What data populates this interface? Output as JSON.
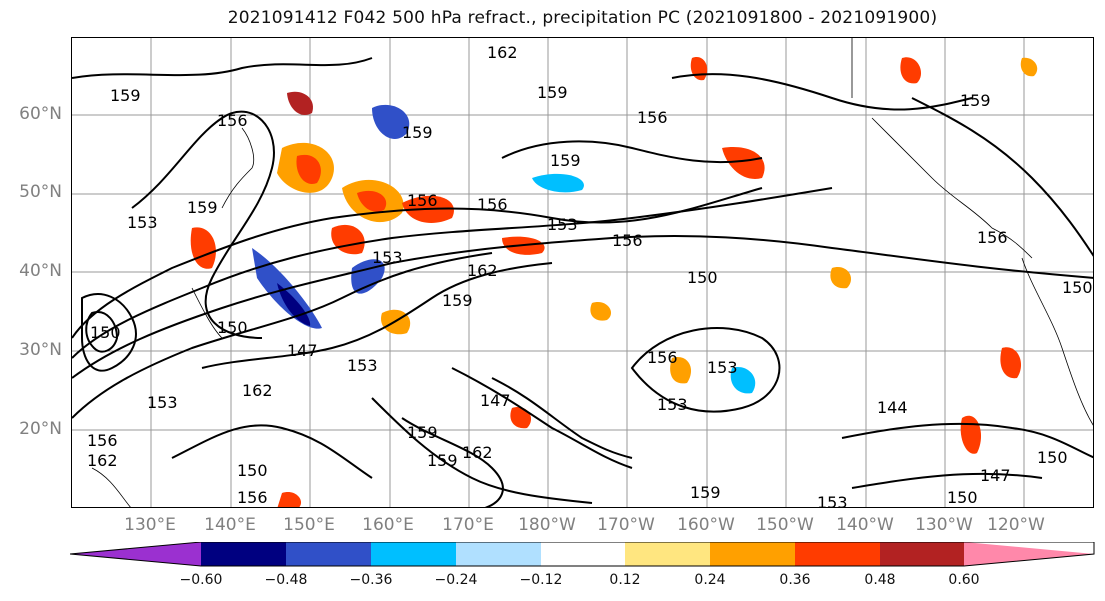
{
  "title": "2021091412 F042 500 hPa refract., precipitation PC (2021091800 - 2021091900)",
  "lat_labels": [
    "60°N",
    "50°N",
    "40°N",
    "30°N",
    "20°N"
  ],
  "lon_labels": [
    "130°E",
    "140°E",
    "150°E",
    "160°E",
    "170°E",
    "180°W",
    "170°W",
    "160°W",
    "150°W",
    "140°W",
    "130°W",
    "120°W"
  ],
  "contour_labels": [
    "162",
    "159",
    "156",
    "159",
    "159",
    "156",
    "159",
    "159",
    "156",
    "156",
    "153",
    "153",
    "156",
    "162",
    "159",
    "150",
    "153",
    "150",
    "147",
    "153",
    "162",
    "147",
    "159",
    "162",
    "159",
    "156",
    "153",
    "150",
    "150",
    "144",
    "147",
    "150",
    "156",
    "159",
    "153",
    "159",
    "156",
    "153",
    "162",
    "156",
    "150",
    "153",
    "150"
  ],
  "colorbar": {
    "colors": [
      "#9b30d0",
      "#000080",
      "#3050c8",
      "#00bfff",
      "#b0e0ff",
      "#ffffff",
      "#ffe680",
      "#ffa000",
      "#ff3c00",
      "#b22222",
      "#ff88aa"
    ],
    "ticks": [
      "−0.60",
      "−0.48",
      "−0.36",
      "−0.24",
      "−0.12",
      "0.12",
      "0.24",
      "0.36",
      "0.48",
      "0.60"
    ]
  },
  "colors": {
    "grid": "#999999",
    "contour": "#000000",
    "axis_label": "#808080"
  }
}
